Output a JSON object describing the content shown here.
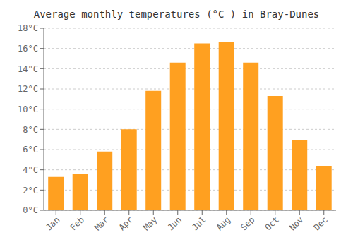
{
  "chart_data": {
    "type": "bar",
    "title": "Average monthly temperatures (°C ) in Bray-Dunes",
    "categories": [
      "Jan",
      "Feb",
      "Mar",
      "Apr",
      "May",
      "Jun",
      "Jul",
      "Aug",
      "Sep",
      "Oct",
      "Nov",
      "Dec"
    ],
    "values": [
      3.3,
      3.6,
      5.8,
      8.0,
      11.8,
      14.6,
      16.5,
      16.6,
      14.6,
      11.3,
      6.9,
      4.4
    ],
    "color": "#FFA020",
    "ylim": [
      0,
      18
    ],
    "yticks": [
      {
        "value": 0,
        "label": "0°C"
      },
      {
        "value": 2,
        "label": "2°C"
      },
      {
        "value": 4,
        "label": "4°C"
      },
      {
        "value": 6,
        "label": "6°C"
      },
      {
        "value": 8,
        "label": "8°C"
      },
      {
        "value": 10,
        "label": "10°C"
      },
      {
        "value": 12,
        "label": "12°C"
      },
      {
        "value": 14,
        "label": "14°C"
      },
      {
        "value": 16,
        "label": "16°C"
      },
      {
        "value": 18,
        "label": "18°C"
      }
    ],
    "grid": true
  }
}
